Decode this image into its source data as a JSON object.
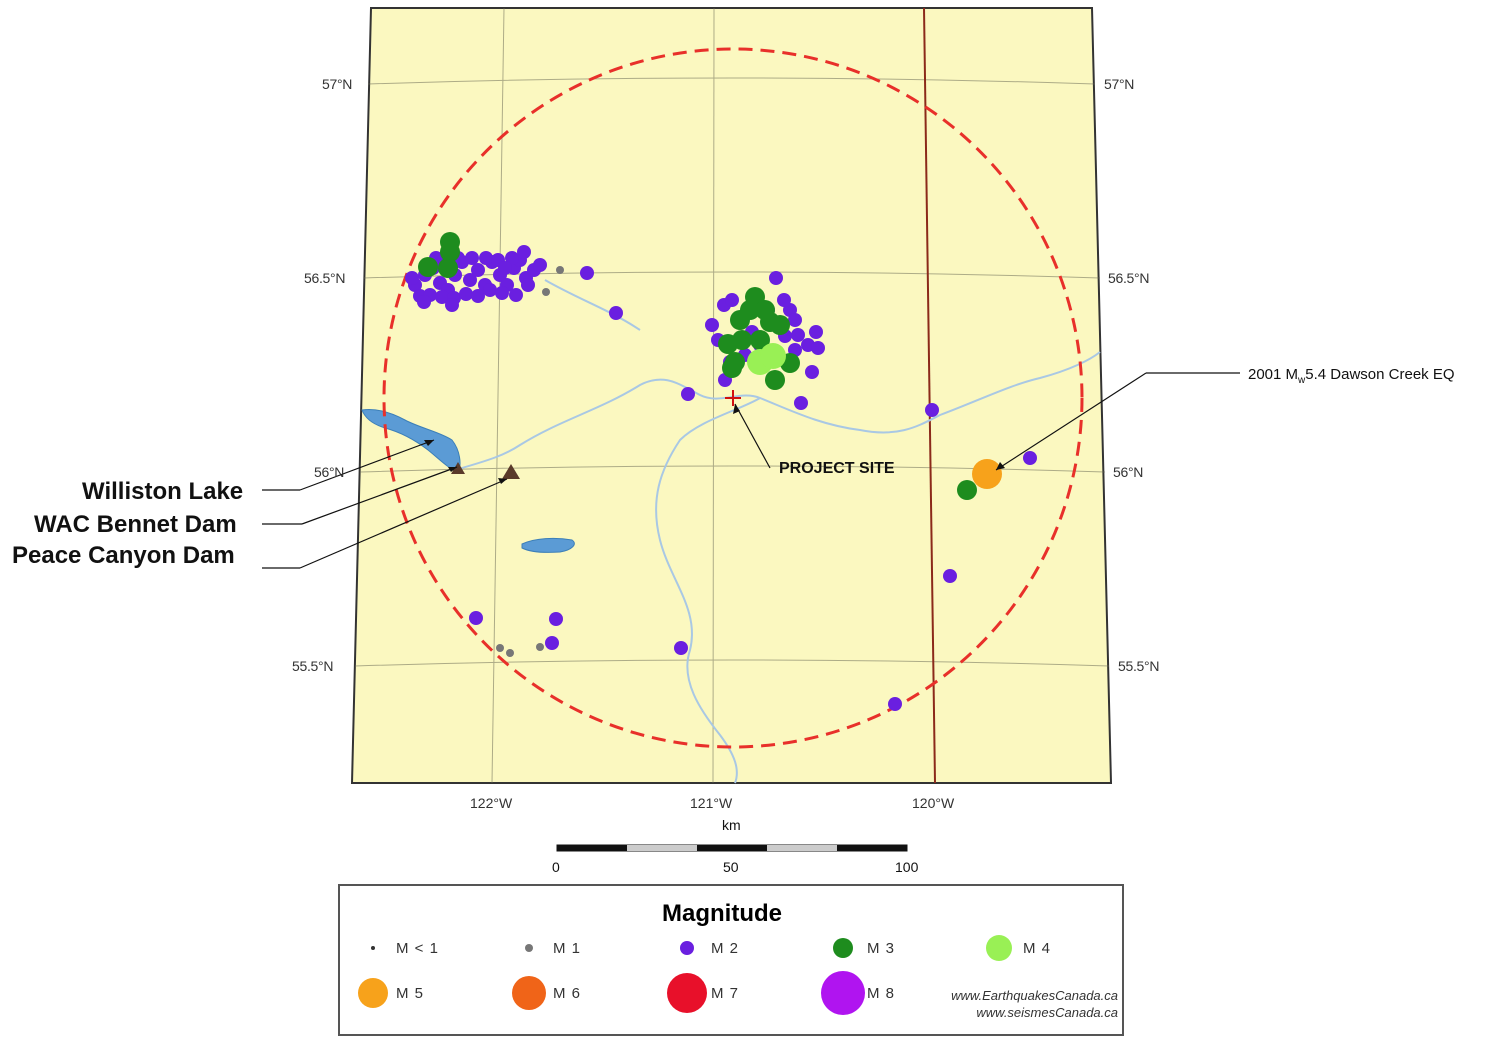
{
  "map": {
    "lat_labels": [
      "57°N",
      "56.5°N",
      "56°N",
      "55.5°N"
    ],
    "lon_labels": [
      "122°W",
      "121°W",
      "120°W"
    ],
    "callouts": {
      "williston": "Williston Lake",
      "wac": "WAC Bennet Dam",
      "peace": "Peace Canyon Dam",
      "project": "PROJECT SITE",
      "eq_prefix": "2001 M",
      "eq_sub": "w",
      "eq_suffix": "5.4 Dawson Creek EQ"
    },
    "colors": {
      "land": "#fbf8c0",
      "water": "#5b9bd5",
      "river": "#a9c8e4",
      "radius_circle": "#e8302a",
      "graticule": "#6e6e58",
      "boundary": "#8b2a1a",
      "dam_marker": "#5a3a2a"
    },
    "project_marker_icon": "cross-marker-icon",
    "dam_marker_icon": "triangle-marker-icon"
  },
  "scale": {
    "unit": "km",
    "ticks": [
      "0",
      "50",
      "100"
    ]
  },
  "legend": {
    "title": "Magnitude",
    "items": [
      {
        "label": "M < 1",
        "color": "#333333"
      },
      {
        "label": "M 1",
        "color": "#777777"
      },
      {
        "label": "M 2",
        "color": "#6a1fe0"
      },
      {
        "label": "M 3",
        "color": "#1e8c1e"
      },
      {
        "label": "M 4",
        "color": "#99f055"
      },
      {
        "label": "M 5",
        "color": "#f7a21b"
      },
      {
        "label": "M 6",
        "color": "#f06418"
      },
      {
        "label": "M 7",
        "color": "#e8102a"
      },
      {
        "label": "M 8",
        "color": "#b014f0"
      }
    ],
    "credit_line1": "www.EarthquakesCanada.ca",
    "credit_line2": "www.seismesCanada.ca"
  }
}
